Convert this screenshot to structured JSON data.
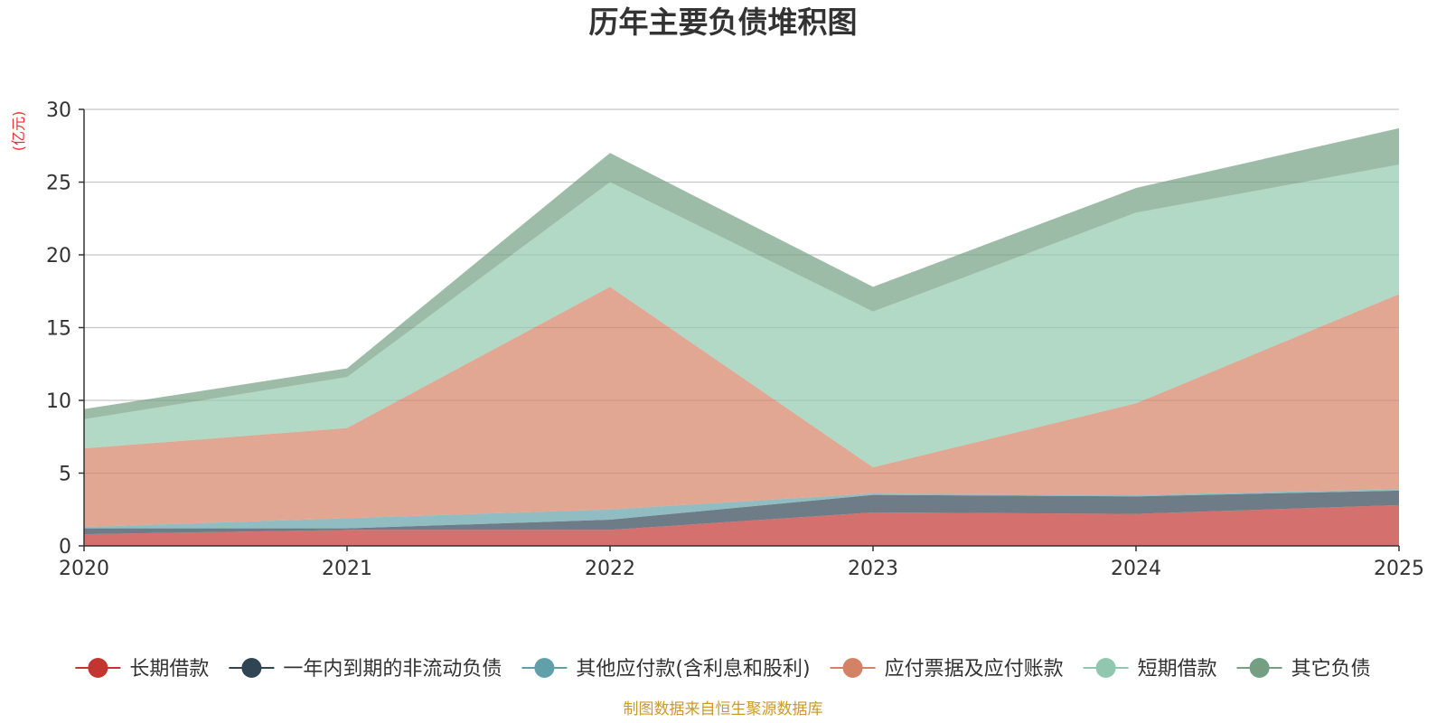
{
  "chart_data": {
    "type": "area",
    "stacked": true,
    "title": "历年主要负债堆积图",
    "ylabel": "(亿元)",
    "xlabel": "",
    "ylim": [
      0,
      30
    ],
    "yticks": [
      0,
      5,
      10,
      15,
      20,
      25,
      30
    ],
    "categories": [
      "2020",
      "2021",
      "2022",
      "2023",
      "2024",
      "2025"
    ],
    "grid": true,
    "legend_position": "bottom",
    "series": [
      {
        "name": "长期借款",
        "color": "#c23531",
        "values": [
          0.8,
          1.1,
          1.1,
          2.3,
          2.2,
          2.8
        ]
      },
      {
        "name": "一年内到期的非流动负债",
        "color": "#2f4554",
        "values": [
          0.4,
          0.1,
          0.7,
          1.2,
          1.2,
          1.0
        ]
      },
      {
        "name": "其他应付款(含利息和股利)",
        "color": "#61a0a8",
        "values": [
          0.1,
          0.7,
          0.7,
          0.1,
          0.1,
          0.1
        ]
      },
      {
        "name": "应付票据及应付账款",
        "color": "#d48265",
        "values": [
          5.4,
          6.2,
          15.3,
          1.8,
          6.3,
          13.4
        ]
      },
      {
        "name": "短期借款",
        "color": "#91c7ae",
        "values": [
          2.0,
          3.5,
          7.2,
          10.7,
          13.1,
          8.9
        ]
      },
      {
        "name": "其它负债",
        "color": "#749f83",
        "values": [
          0.7,
          0.6,
          2.0,
          1.7,
          1.7,
          2.5
        ]
      }
    ],
    "source_note": "制图数据来自恒生聚源数据库"
  }
}
